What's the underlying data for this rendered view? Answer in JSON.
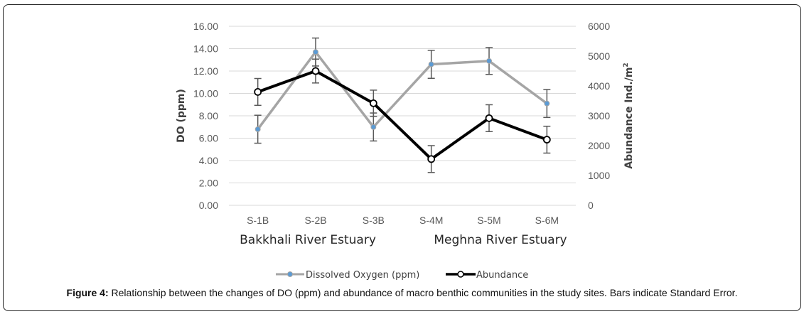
{
  "chart_data": {
    "type": "line",
    "categories": [
      "S-1B",
      "S-2B",
      "S-3B",
      "S-4M",
      "S-5M",
      "S-6M"
    ],
    "group_labels": [
      "Bakkhali River Estuary",
      "Meghna River Estuary"
    ],
    "series": [
      {
        "name": "Dissolved Oxygen (ppm)",
        "axis": "left",
        "color": "#a5a5a5",
        "marker_color": "#5b9bd5",
        "values": [
          6.8,
          13.7,
          7.0,
          12.6,
          12.9,
          9.1
        ],
        "error": [
          1.25,
          1.25,
          1.25,
          1.25,
          1.2,
          1.25
        ]
      },
      {
        "name": "Abundance",
        "axis": "right",
        "color": "#000000",
        "marker_color": "#ffffff",
        "values": [
          3800,
          4500,
          3420,
          1550,
          2920,
          2200
        ],
        "error": [
          450,
          400,
          440,
          450,
          450,
          450
        ]
      }
    ],
    "ylabel": "DO (ppm)",
    "y2label": "Abundance Ind./m",
    "y2label_sup": "2",
    "ylim": [
      0,
      16
    ],
    "y2lim": [
      0,
      6000
    ],
    "yticks": [
      "0.00",
      "2.00",
      "4.00",
      "6.00",
      "8.00",
      "10.00",
      "12.00",
      "14.00",
      "16.00"
    ],
    "y2ticks": [
      "0",
      "1000",
      "2000",
      "3000",
      "4000",
      "5000",
      "6000"
    ],
    "grid": true,
    "legend": "bottom"
  },
  "caption": {
    "label": "Figure 4:",
    "text": " Relationship between the changes of DO (ppm) and abundance of macro benthic communities in the study sites. Bars indicate Standard Error."
  }
}
